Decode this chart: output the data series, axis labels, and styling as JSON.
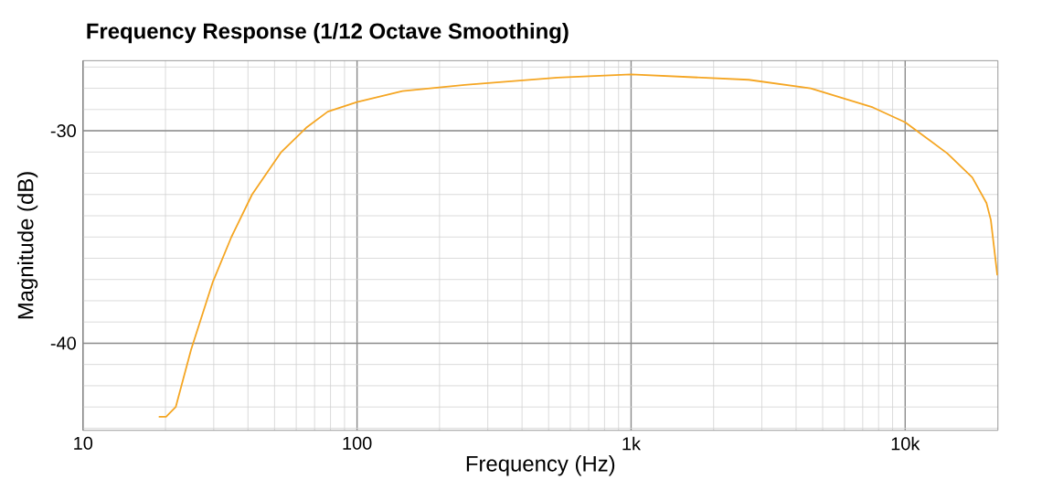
{
  "chart_data": {
    "type": "line",
    "title": "Frequency Response (1/12 Octave Smoothing)",
    "xlabel": "Frequency (Hz)",
    "ylabel": "Magnitude (dB)",
    "log": "x",
    "grid": true,
    "marker": "none",
    "line_style": "solid",
    "xlim": [
      10,
      21800
    ],
    "ylim": [
      -44.1,
      -26.7
    ],
    "xticks": [
      10,
      100,
      {
        "value": 1000,
        "label": "1k"
      },
      {
        "value": 10000,
        "label": "10k"
      }
    ],
    "yticks": [
      -30,
      -40
    ],
    "series": [
      {
        "color": "#f5a623",
        "x": [
          18.9,
          20.1,
          21.8,
          24.8,
          29.8,
          34.8,
          41.4,
          52.9,
          65.2,
          78.2,
          100,
          146.5,
          247,
          540,
          1000,
          2685,
          4520,
          7620,
          10000,
          14260,
          17580,
          19800,
          20540,
          21690
        ],
        "values": [
          -43.46,
          -43.46,
          -43.0,
          -40.3,
          -37.1,
          -35.0,
          -33.0,
          -31.0,
          -29.86,
          -29.1,
          -28.65,
          -28.13,
          -27.84,
          -27.5,
          -27.35,
          -27.6,
          -28.0,
          -28.9,
          -29.6,
          -31.07,
          -32.2,
          -33.4,
          -34.2,
          -36.8
        ]
      }
    ]
  }
}
